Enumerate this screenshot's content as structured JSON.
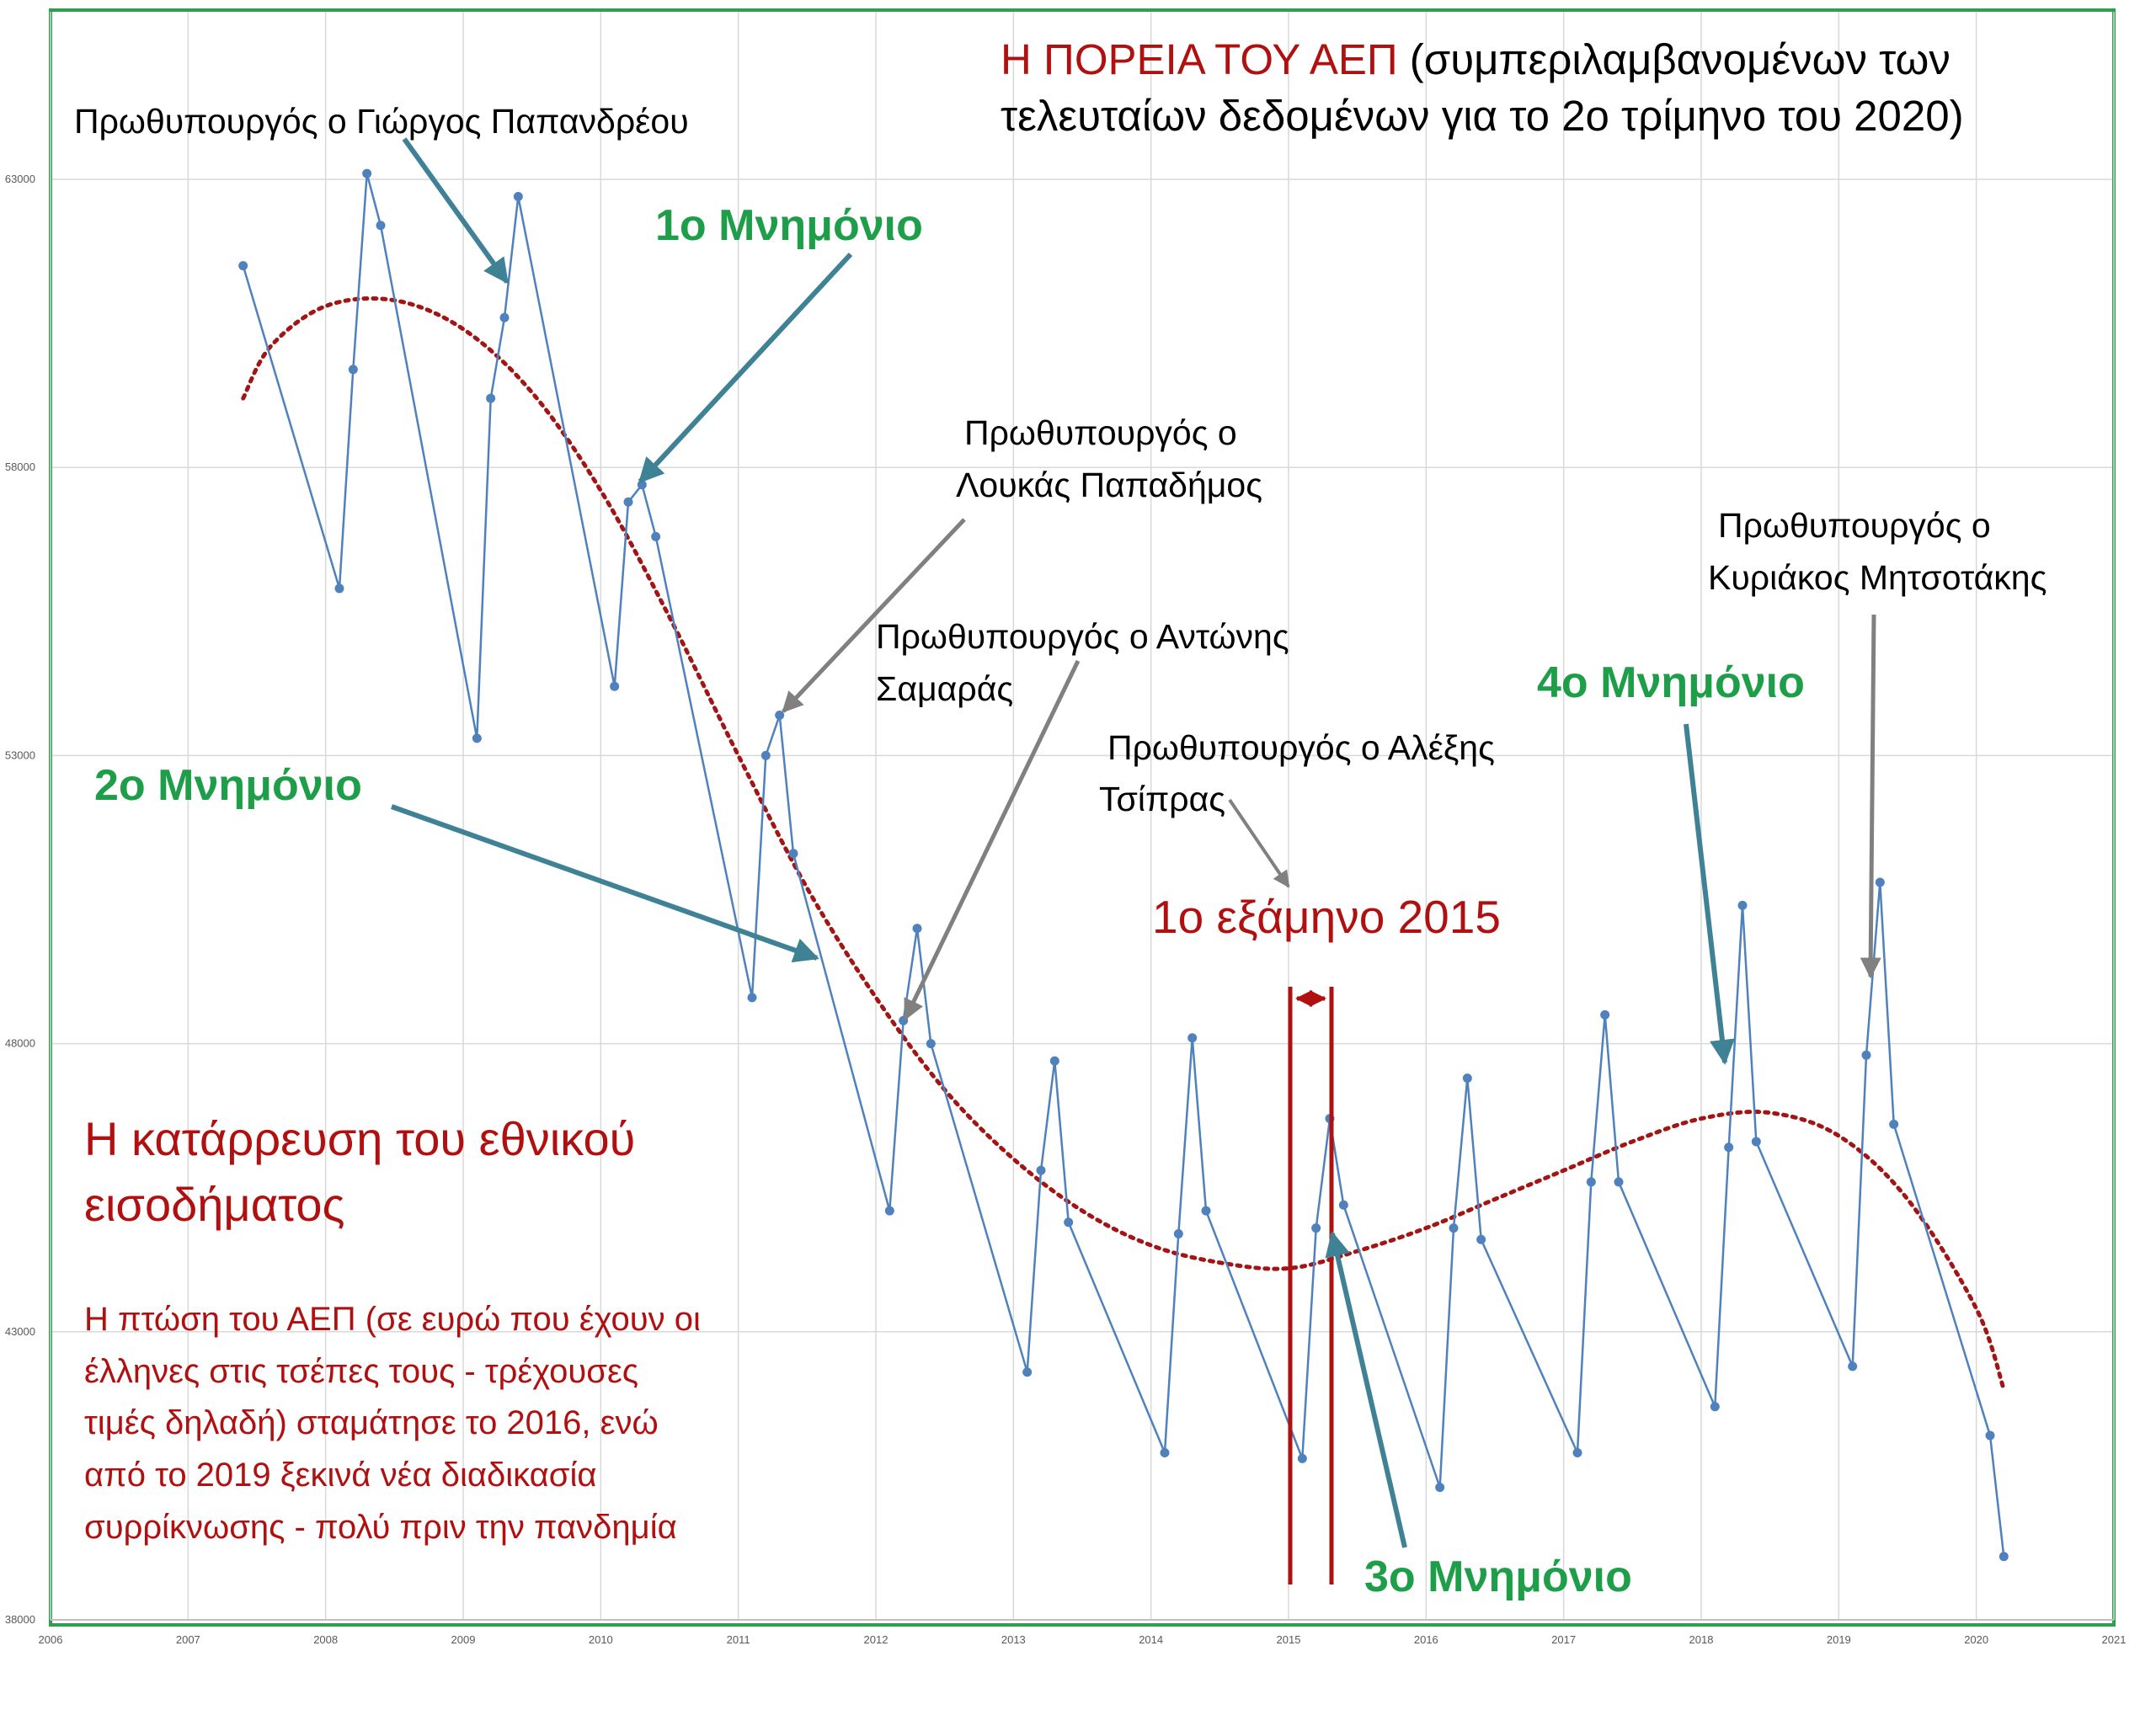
{
  "chart_data": {
    "type": "line",
    "title": {
      "red": "Η ΠΟΡΕΙΑ ΤΟΥ ΑΕΠ",
      "black_line1": "(συμπεριλαμβανομένων των",
      "black_line2": "τελευταίων δεδομένων για το 2ο τρίμηνο του 2020)"
    },
    "xlabel": "",
    "ylabel": "",
    "xlim": [
      2006,
      2021
    ],
    "ylim": [
      38000,
      65000
    ],
    "x_ticks": [
      "2006",
      "2007",
      "2008",
      "2009",
      "2010",
      "2011",
      "2012",
      "2013",
      "2014",
      "2015",
      "2016",
      "2017",
      "2018",
      "2019",
      "2020",
      "2021"
    ],
    "y_ticks": [
      "38000",
      "43000",
      "48000",
      "53000",
      "58000",
      "63000"
    ],
    "grid": true,
    "series": [
      {
        "name": "",
        "color": "#4f81bd",
        "points": [
          [
            2007.4,
            61500
          ],
          [
            2008.1,
            55900
          ],
          [
            2008.2,
            59700
          ],
          [
            2008.3,
            63100
          ],
          [
            2008.4,
            62200
          ],
          [
            2009.1,
            53300
          ],
          [
            2009.2,
            59200
          ],
          [
            2009.3,
            60600
          ],
          [
            2009.4,
            62700
          ],
          [
            2010.1,
            54200
          ],
          [
            2010.2,
            57400
          ],
          [
            2010.3,
            57700
          ],
          [
            2010.4,
            56800
          ],
          [
            2011.1,
            48800
          ],
          [
            2011.2,
            53000
          ],
          [
            2011.3,
            53700
          ],
          [
            2011.4,
            51300
          ],
          [
            2012.1,
            45100
          ],
          [
            2012.2,
            48400
          ],
          [
            2012.3,
            50000
          ],
          [
            2012.4,
            48000
          ],
          [
            2013.1,
            42300
          ],
          [
            2013.2,
            45800
          ],
          [
            2013.3,
            47700
          ],
          [
            2013.4,
            44900
          ],
          [
            2014.1,
            40900
          ],
          [
            2014.2,
            44700
          ],
          [
            2014.3,
            48100
          ],
          [
            2014.4,
            45100
          ],
          [
            2015.1,
            40800
          ],
          [
            2015.2,
            44800
          ],
          [
            2015.3,
            46700
          ],
          [
            2015.4,
            45200
          ],
          [
            2016.1,
            40300
          ],
          [
            2016.2,
            44800
          ],
          [
            2016.3,
            47400
          ],
          [
            2016.4,
            44600
          ],
          [
            2017.1,
            40900
          ],
          [
            2017.2,
            45600
          ],
          [
            2017.3,
            48500
          ],
          [
            2017.4,
            45600
          ],
          [
            2018.1,
            41700
          ],
          [
            2018.2,
            46200
          ],
          [
            2018.3,
            50400
          ],
          [
            2018.4,
            46300
          ],
          [
            2019.1,
            42400
          ],
          [
            2019.2,
            47800
          ],
          [
            2019.3,
            50800
          ],
          [
            2019.4,
            46600
          ],
          [
            2020.1,
            41200
          ],
          [
            2020.2,
            39100
          ]
        ]
      }
    ],
    "trendline": {
      "style": "dotted",
      "color": "#a31515",
      "points": [
        [
          2007.4,
          59200
        ],
        [
          2007.6,
          60100
        ],
        [
          2008.0,
          60800
        ],
        [
          2008.5,
          60900
        ],
        [
          2009.0,
          60400
        ],
        [
          2009.5,
          59300
        ],
        [
          2010.0,
          57600
        ],
        [
          2010.5,
          55400
        ],
        [
          2011.0,
          53000
        ],
        [
          2011.5,
          50700
        ],
        [
          2012.0,
          48800
        ],
        [
          2012.5,
          47200
        ],
        [
          2013.0,
          46000
        ],
        [
          2013.5,
          45100
        ],
        [
          2014.0,
          44500
        ],
        [
          2014.5,
          44200
        ],
        [
          2015.0,
          44100
        ],
        [
          2015.5,
          44400
        ],
        [
          2016.0,
          44800
        ],
        [
          2016.5,
          45300
        ],
        [
          2017.0,
          45800
        ],
        [
          2017.5,
          46300
        ],
        [
          2018.0,
          46700
        ],
        [
          2018.5,
          46800
        ],
        [
          2019.0,
          46400
        ],
        [
          2019.5,
          45300
        ],
        [
          2020.0,
          43400
        ],
        [
          2020.2,
          42000
        ]
      ]
    },
    "annotations": {
      "papandreou": "Πρωθυπουργός ο Γιώργος Παπανδρέου",
      "memo1": "1ο Μνημόνιο",
      "papademos_line1": "Πρωθυπουργός ο",
      "papademos_line2": "Λουκάς Παπαδήμος",
      "samaras_line1": "Πρωθυπουργός ο Αντώνης",
      "samaras_line2": "Σαμαράς",
      "tsipras_line1": "Πρωθυπουργός ο Αλέξης",
      "tsipras_line2": "Τσίπρας",
      "memo2": "2ο Μνημόνιο",
      "semester": "1ο εξάμηνο 2015",
      "memo3": "3ο Μνημόνιο",
      "memo4": "4ο Μνημόνιο",
      "mitsotakis_line1": "Πρωθυπουργός ο",
      "mitsotakis_line2": "Κυριάκος Μητσοτάκης",
      "collapse_line1": "Η κατάρρευση του εθνικού",
      "collapse_line2": "εισοδήματος",
      "note_lines": [
        "Η πτώση του ΑΕΠ (σε ευρώ που έχουν οι",
        "έλληνες στις τσέπες τους - τρέχουσες",
        "τιμές δηλαδή) σταμάτησε το 2016, ενώ",
        "από το 2019 ξεκινά νέα διαδικασία",
        "συρρίκνωσης - πολύ πριν την πανδημία"
      ]
    },
    "colors": {
      "frame": "#2e9e4f",
      "series": "#4f81bd",
      "trend": "#a31515",
      "memo": "#1f9e4a",
      "red_text": "#b01010",
      "arrow_teal": "#3f8296",
      "arrow_gray": "#808080"
    }
  }
}
